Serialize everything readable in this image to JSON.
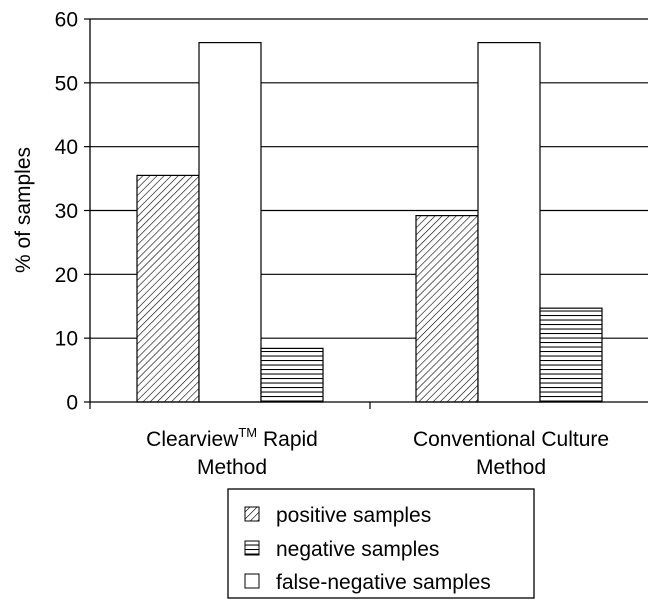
{
  "chart_data": {
    "type": "bar",
    "title": "",
    "xlabel": "",
    "ylabel": "% of samples",
    "ylim": [
      0,
      60
    ],
    "yticks": [
      0,
      10,
      20,
      30,
      40,
      50,
      60
    ],
    "grid": true,
    "legend_position": "bottom",
    "categories": [
      {
        "line1": "Clearview",
        "superscript": "TM",
        "line1_rest": " Rapid",
        "line2": "Method"
      },
      {
        "line1": "Conventional Culture",
        "superscript": "",
        "line1_rest": "",
        "line2": "Method"
      }
    ],
    "series": [
      {
        "name": "positive samples",
        "pattern": "diagonal-hatch",
        "values": [
          35.5,
          29.2
        ]
      },
      {
        "name": "false-negative samples",
        "pattern": "blank",
        "values": [
          56.3,
          56.3
        ]
      },
      {
        "name": "negative samples",
        "pattern": "horizontal-lines",
        "values": [
          8.4,
          14.7
        ]
      }
    ],
    "legend_order": [
      "positive samples",
      "negative samples",
      "false-negative samples"
    ]
  },
  "colors": {
    "axis": "#000000",
    "bar_fill": "#ffffff",
    "pattern_line": "#000000"
  }
}
